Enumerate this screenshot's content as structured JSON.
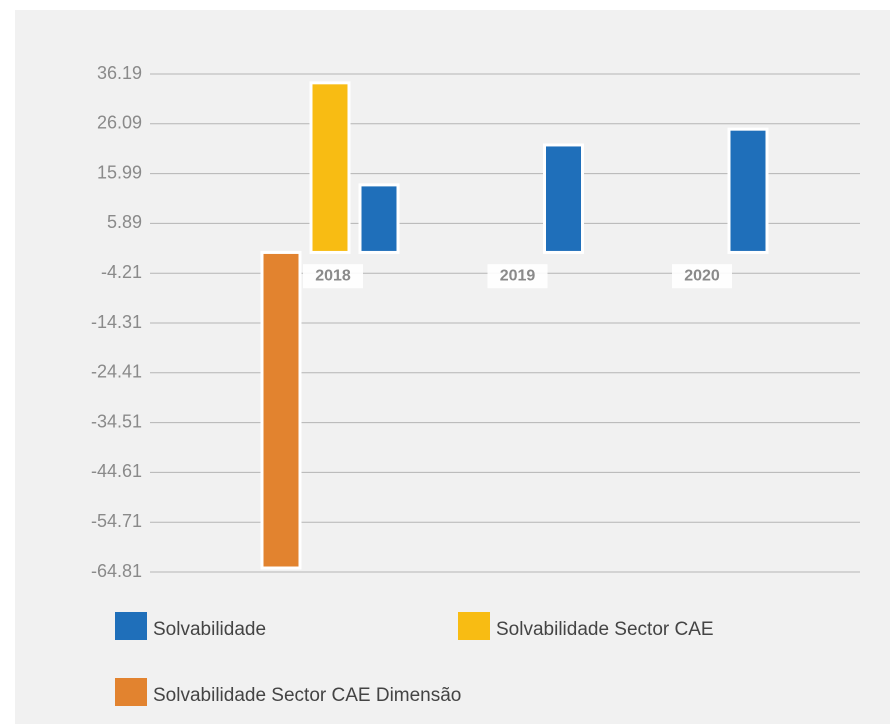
{
  "chart_data": {
    "type": "bar",
    "categories": [
      "2018",
      "2019",
      "2020"
    ],
    "series": [
      {
        "name": "Solvabilidade Sector CAE Dimensão",
        "color": "#e2832f",
        "values": [
          -64.0,
          null,
          null
        ]
      },
      {
        "name": "Solvabilidade Sector CAE",
        "color": "#f8bc13",
        "values": [
          34.4,
          null,
          null
        ]
      },
      {
        "name": "Solvabilidade",
        "color": "#1f6fba",
        "values": [
          13.7,
          21.8,
          25.0
        ]
      }
    ],
    "ylim": [
      -64.81,
      36.19
    ],
    "yticks": [
      36.19,
      26.09,
      15.99,
      5.89,
      -4.21,
      -14.31,
      -24.41,
      -34.51,
      -44.61,
      -54.71,
      -64.81
    ],
    "grid": true
  }
}
